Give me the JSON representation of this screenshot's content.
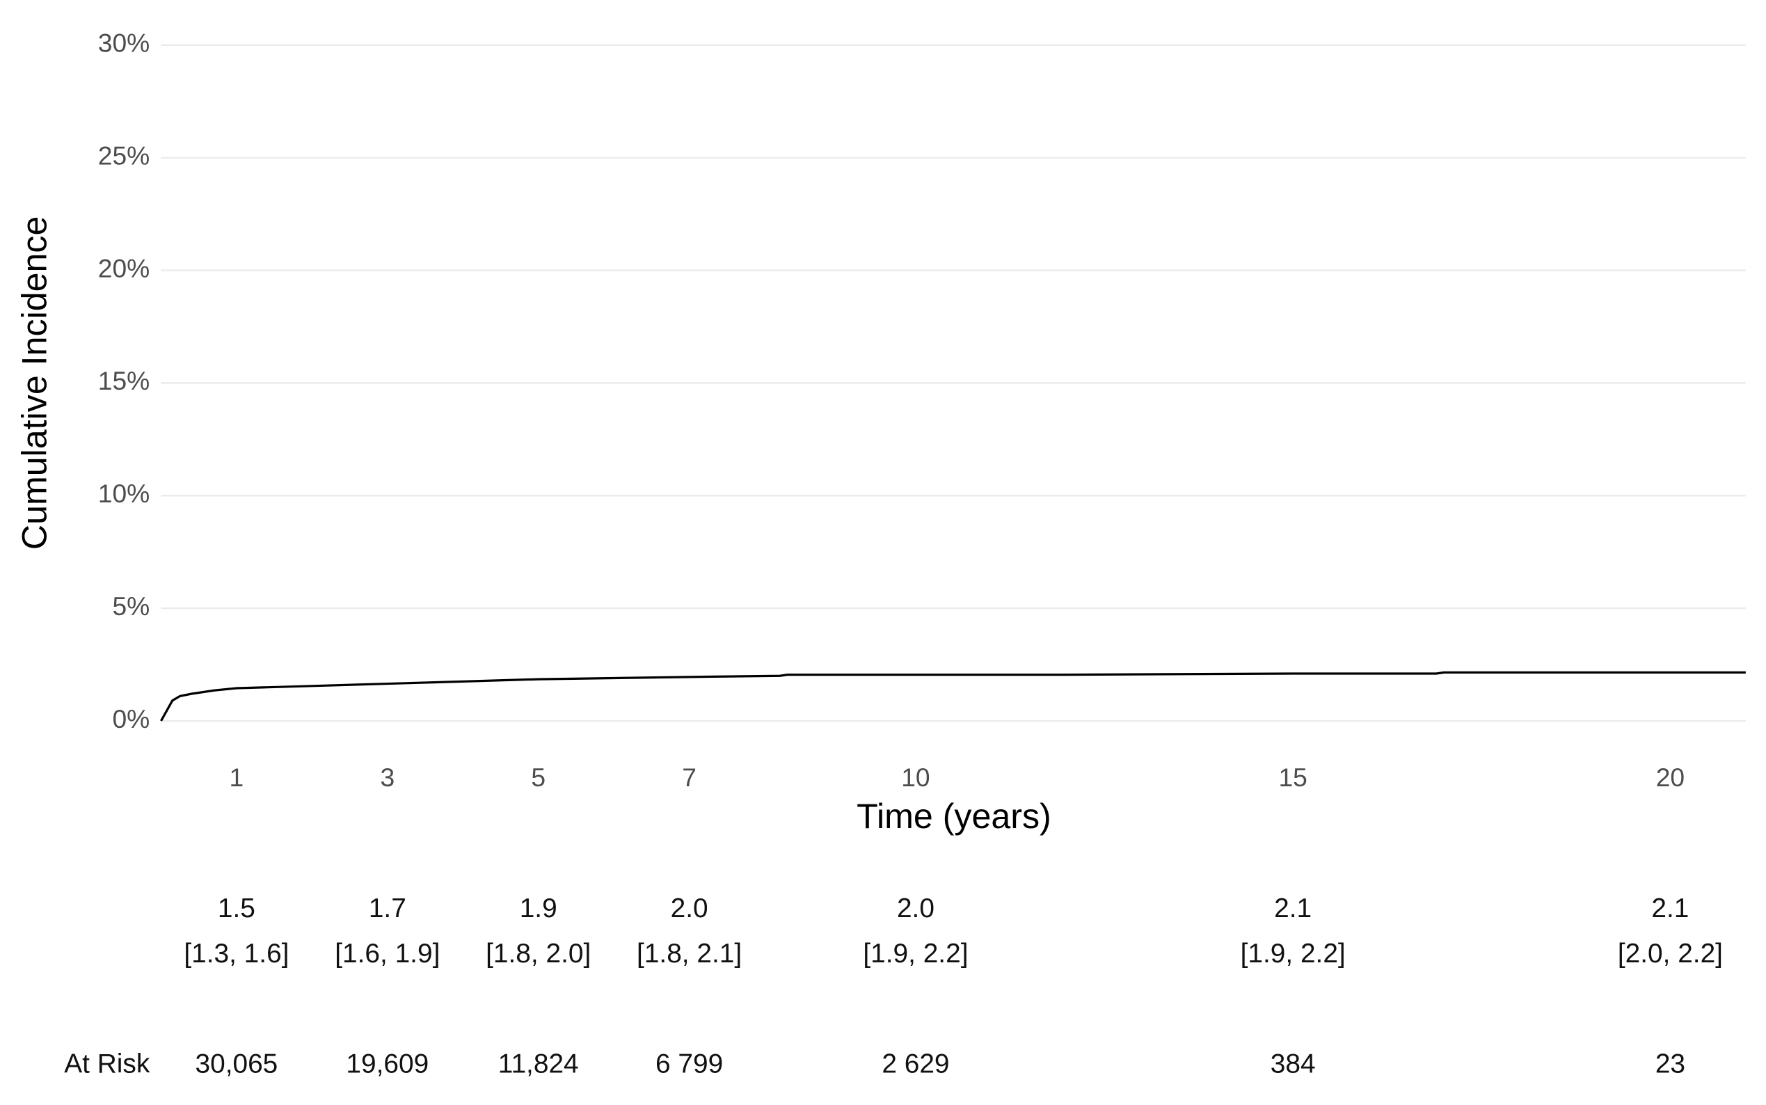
{
  "chart_data": {
    "type": "line",
    "xlabel": "Time (years)",
    "ylabel": "Cumulative Incidence",
    "x": [
      0,
      0.05,
      0.15,
      0.25,
      0.4,
      0.7,
      1,
      2,
      3,
      4,
      5,
      6,
      7,
      8.2,
      8.3,
      10,
      12,
      15,
      16.9,
      17,
      20,
      21
    ],
    "series": [
      {
        "color": "#000000",
        "values": [
          0,
          0.3,
          0.9,
          1.1,
          1.2,
          1.35,
          1.45,
          1.55,
          1.65,
          1.75,
          1.85,
          1.9,
          1.95,
          2.0,
          2.05,
          2.05,
          2.05,
          2.1,
          2.1,
          2.15,
          2.15,
          2.15
        ]
      }
    ],
    "xlim": [
      0,
      21
    ],
    "ylim": [
      0,
      30
    ],
    "xticks": [
      1,
      3,
      5,
      7,
      10,
      15,
      20
    ],
    "yticks": [
      {
        "value": 0,
        "label": "0%"
      },
      {
        "value": 5,
        "label": "5%"
      },
      {
        "value": 10,
        "label": "10%"
      },
      {
        "value": 15,
        "label": "15%"
      },
      {
        "value": 20,
        "label": "20%"
      },
      {
        "value": 25,
        "label": "25%"
      },
      {
        "value": 30,
        "label": "30%"
      }
    ],
    "grid": true,
    "risk_table": {
      "estimates": [
        "1.5",
        "1.7",
        "1.9",
        "2.0",
        "2.0",
        "2.1",
        "2.1"
      ],
      "intervals": [
        "[1.3, 1.6]",
        "[1.6, 1.9]",
        "[1.8, 2.0]",
        "[1.8, 2.1]",
        "[1.9, 2.2]",
        "[1.9, 2.2]",
        "[2.0, 2.2]"
      ],
      "at_risk_label": "At Risk",
      "at_risk": [
        "30,065",
        "19,609",
        "11,824",
        "6 799",
        "2 629",
        "384",
        "23"
      ]
    }
  }
}
